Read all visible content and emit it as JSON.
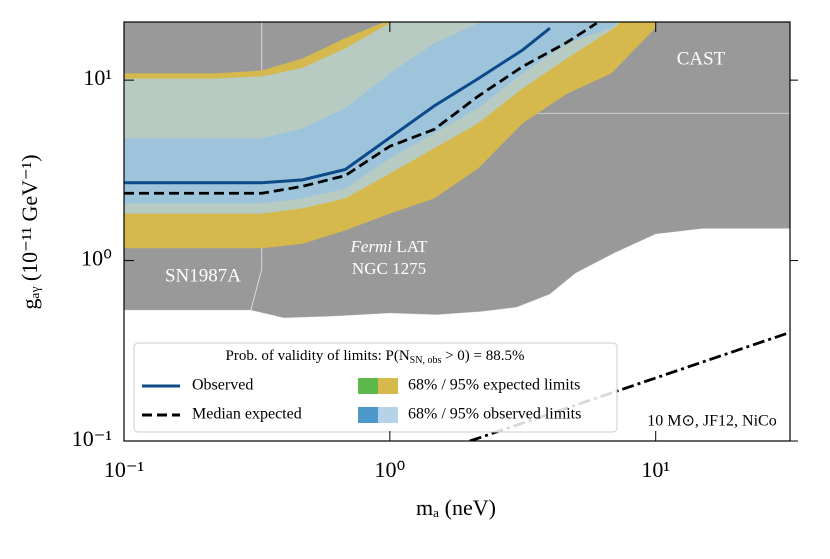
{
  "chart_data": {
    "type": "line",
    "xlabel": "mₐ (neV)",
    "ylabel": "gₐᵧ (10⁻¹¹ GeV⁻¹)",
    "xscale": "log",
    "yscale": "log",
    "xlim": [
      0.1,
      32
    ],
    "ylim": [
      0.1,
      21
    ],
    "xticks": [
      {
        "value": 0.1,
        "label": "10⁻¹"
      },
      {
        "value": 1,
        "label": "10⁰"
      },
      {
        "value": 10,
        "label": "10¹"
      }
    ],
    "yticks": [
      {
        "value": 0.1,
        "label": "10⁻¹"
      },
      {
        "value": 1,
        "label": "10⁰"
      },
      {
        "value": 10,
        "label": "10¹"
      }
    ],
    "regions": [
      {
        "name": "SN1987A",
        "color": "#999999",
        "x": [
          0.1,
          0.3,
          0.33,
          0.33,
          0.1
        ],
        "y": [
          0.53,
          0.53,
          0.9,
          21,
          21
        ]
      },
      {
        "name": "NGC 1275",
        "color": "#999999",
        "x": [
          0.3,
          0.4,
          0.6,
          1.0,
          1.5,
          2.2,
          3.0,
          4.0,
          5.0,
          7.0,
          10,
          15,
          32,
          32,
          0.33,
          0.33
        ],
        "y": [
          0.53,
          0.48,
          0.49,
          0.51,
          0.5,
          0.52,
          0.55,
          0.65,
          0.85,
          1.1,
          1.4,
          1.5,
          1.5,
          21,
          21,
          0.9
        ]
      },
      {
        "name": "CAST",
        "color": "#999999",
        "x": [
          3.0,
          32,
          32,
          3.0
        ],
        "y": [
          6.55,
          6.55,
          21,
          21
        ]
      }
    ],
    "annotations": {
      "sn": "SN1987A",
      "fermi": "Fermi",
      "lat": " LAT",
      "ngc": "NGC 1275",
      "cast": "CAST",
      "model": "10 M⊙, JF12, NiCo"
    },
    "band_groups": [
      {
        "name": "68% / 95% expected limits",
        "x": [
          0.1,
          0.22,
          0.33,
          0.47,
          0.68,
          1.0,
          1.47,
          2.15,
          3.16,
          4.64,
          6.81,
          10
        ],
        "bands": [
          {
            "color": "#d6b94c",
            "opacity": 1,
            "lower": [
              1.17,
              1.17,
              1.17,
              1.24,
              1.47,
              1.82,
              2.21,
              3.24,
              5.77,
              8.4,
              10.9,
              19.5
            ],
            "upper": [
              10.9,
              10.9,
              11.3,
              13.2,
              17.1,
              21.6,
              30,
              30,
              30,
              30,
              30,
              30
            ]
          },
          {
            "color": "#5cb84b",
            "opacity": 1,
            "lower": [
              1.33,
              1.33,
              1.35,
              1.47,
              1.67,
              2.07,
              2.51,
              3.93,
              7.0,
              10.2,
              13.2,
              20.7
            ],
            "upper": [
              5.41,
              5.41,
              5.41,
              6.15,
              7.93,
              11.7,
              16,
              20.7,
              30,
              30,
              30,
              30
            ]
          }
        ]
      },
      {
        "name": "68% / 95% observed limits",
        "x": [
          0.1,
          0.22,
          0.33,
          0.47,
          0.68,
          1.0,
          1.47,
          2.15,
          3.16,
          4.64,
          6.81,
          10
        ],
        "bands": [
          {
            "color": "#aed0e6",
            "opacity": 0.78,
            "lower": [
              1.82,
              1.82,
              1.82,
              1.95,
              2.21,
              3.04,
              4.19,
              5.77,
              9.0,
              13.2,
              19,
              30
            ],
            "upper": [
              10.2,
              10.2,
              10.5,
              11.7,
              15,
              20.7,
              30,
              30,
              30,
              30,
              30,
              30
            ]
          },
          {
            "color": "#4c98c8",
            "opacity": 0.85,
            "lower": [
              2.07,
              2.07,
              2.07,
              2.21,
              2.51,
              3.68,
              5.08,
              7.0,
              10.9,
              16,
              19.5,
              30
            ],
            "upper": [
              4.76,
              4.76,
              4.76,
              5.41,
              7.0,
              10.9,
              16,
              20.7,
              30,
              30,
              30,
              30
            ]
          }
        ]
      }
    ],
    "series": [
      {
        "name": "Observed",
        "color": "#0d4a8a",
        "dash": "solid",
        "x": [
          0.1,
          0.22,
          0.33,
          0.47,
          0.68,
          1.0,
          1.47,
          2.15,
          3.16,
          4.0
        ],
        "values": [
          2.7,
          2.7,
          2.7,
          2.8,
          3.2,
          4.8,
          7.2,
          10.2,
          14.7,
          19.4
        ]
      },
      {
        "name": "Median expected",
        "color": "#000000",
        "dash": "dashed",
        "x": [
          0.1,
          0.22,
          0.33,
          0.47,
          0.68,
          1.0,
          1.47,
          2.15,
          3.16,
          4.64,
          6.0
        ],
        "values": [
          2.36,
          2.36,
          2.36,
          2.58,
          2.96,
          4.3,
          5.34,
          8.15,
          11.9,
          16.2,
          20.7
        ]
      },
      {
        "name": "10 M⊙, JF12, NiCo",
        "color": "#000000",
        "dash": "dashdot",
        "legend": false,
        "x": [
          2.0,
          32
        ],
        "values": [
          0.1,
          0.4
        ]
      }
    ],
    "legend_title": [
      "Prob. of validity of limits: P(N",
      "SN, obs",
      " > 0) = 88.5%"
    ],
    "legend": "lower left"
  }
}
